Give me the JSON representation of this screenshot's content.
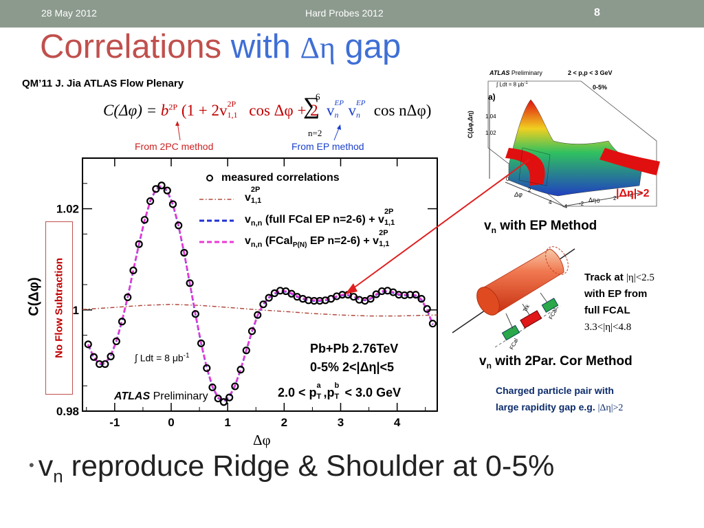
{
  "header": {
    "date": "28 May 2012",
    "conference": "Hard Probes 2012",
    "slide_number": "8"
  },
  "title": {
    "part1": "Correlations",
    "part2": "with",
    "symbol": "Δη",
    "part3": "gap"
  },
  "reference": "QM’11 J. Jia  ATLAS Flow Plenary",
  "formula": {
    "lhs": "C(Δφ) =",
    "b2p": "b",
    "b2p_sup": "2P",
    "open": "(1 + 2v",
    "v11_sup": "2P",
    "v11_sub": "1,1",
    "cos1": "cos Δφ + 2",
    "sum_top": "6",
    "sum_bottom": "n=2",
    "vn1": "v",
    "vn1_sup": "EP",
    "vn1_sub": "n",
    "vn2": "v",
    "vn2_sup": "EP",
    "vn2_sub": "n",
    "cosn": "cos nΔφ)",
    "note_2pc": "From 2PC method",
    "note_ep": "From EP method"
  },
  "side_label": "No Flow Subtraction",
  "colors": {
    "header_bg": "#8c9a8e",
    "title_red": "#c0504d",
    "title_blue": "#3f6fd6",
    "note_red": "#cc2222",
    "note_blue": "#1a3fcc",
    "arrow_red": "#e02020"
  },
  "chart_data": {
    "type": "line",
    "xlabel": "Δφ",
    "ylabel": "C(Δφ)",
    "xlim": [
      -1.57,
      4.71
    ],
    "ylim": [
      0.98,
      1.03
    ],
    "xticks": [
      "-1",
      "0",
      "1",
      "2",
      "3",
      "4"
    ],
    "yticks": [
      "0.98",
      "1",
      "1.02"
    ],
    "grid": false,
    "legend_position": "top",
    "series": [
      {
        "name": "measured correlations",
        "style": "open-circles",
        "color": "#000000",
        "x": [
          -1.47,
          -1.37,
          -1.27,
          -1.17,
          -1.07,
          -0.97,
          -0.87,
          -0.77,
          -0.67,
          -0.57,
          -0.47,
          -0.37,
          -0.27,
          -0.17,
          -0.07,
          0.03,
          0.13,
          0.23,
          0.33,
          0.43,
          0.53,
          0.63,
          0.73,
          0.83,
          0.93,
          1.03,
          1.13,
          1.23,
          1.33,
          1.43,
          1.53,
          1.63,
          1.73,
          1.83,
          1.93,
          2.03,
          2.13,
          2.23,
          2.33,
          2.43,
          2.53,
          2.63,
          2.73,
          2.83,
          2.93,
          3.03,
          3.13,
          3.23,
          3.33,
          3.43,
          3.53,
          3.63,
          3.73,
          3.83,
          3.93,
          4.03,
          4.13,
          4.23,
          4.33,
          4.43,
          4.53,
          4.63
        ],
        "y": [
          0.9932,
          0.9907,
          0.9893,
          0.9893,
          0.9908,
          0.9938,
          0.9977,
          1.0025,
          1.0078,
          1.013,
          1.0178,
          1.0215,
          1.0239,
          1.0246,
          1.0236,
          1.0209,
          1.0167,
          1.0113,
          1.0053,
          0.9992,
          0.9934,
          0.9885,
          0.9847,
          0.9825,
          0.9818,
          0.9827,
          0.9849,
          0.9882,
          0.992,
          0.9958,
          0.999,
          1.0011,
          1.0024,
          1.0033,
          1.0038,
          1.0037,
          1.0032,
          1.0026,
          1.0022,
          1.0019,
          1.0018,
          1.0018,
          1.0019,
          1.0022,
          1.0027,
          1.003,
          1.003,
          1.0026,
          1.002,
          1.0018,
          1.0022,
          1.0031,
          1.0037,
          1.0038,
          1.0035,
          1.003,
          1.0029,
          1.003,
          1.003,
          1.0022,
          1.0002,
          0.9973
        ]
      },
      {
        "name": "v<sub>1,1</sub><sup>2P</sup>",
        "style": "dash-dot",
        "color": "#b0483c",
        "x": [
          -1.57,
          -1.0,
          -0.5,
          0.0,
          0.5,
          1.0,
          1.57,
          2.0,
          2.5,
          3.0,
          3.5,
          4.0,
          4.71
        ],
        "y": [
          1.0001,
          1.0005,
          1.0009,
          1.0011,
          1.0009,
          1.0005,
          1.0,
          0.9997,
          0.9993,
          0.999,
          0.9988,
          0.9988,
          0.999
        ]
      },
      {
        "name": "full FCal EP",
        "style": "dashed",
        "color": "#1f2fd6",
        "x": [
          -1.47,
          -1.37,
          -1.27,
          -1.17,
          -1.07,
          -0.97,
          -0.87,
          -0.77,
          -0.67,
          -0.57,
          -0.47,
          -0.37,
          -0.27,
          -0.17,
          -0.07,
          0.03,
          0.13,
          0.23,
          0.33,
          0.43,
          0.53,
          0.63,
          0.73,
          0.83,
          0.93,
          1.03,
          1.13,
          1.23,
          1.33,
          1.43,
          1.53,
          1.63,
          1.73,
          1.83,
          1.93,
          2.03,
          2.13,
          2.23,
          2.33,
          2.43,
          2.53,
          2.63,
          2.73,
          2.83,
          2.93,
          3.03,
          3.13,
          3.23,
          3.33,
          3.43,
          3.53,
          3.63,
          3.73,
          3.83,
          3.93,
          4.03,
          4.13,
          4.23,
          4.33,
          4.43,
          4.53,
          4.63
        ],
        "y": [
          0.9931,
          0.9906,
          0.9893,
          0.9894,
          0.9909,
          0.9938,
          0.9978,
          1.0025,
          1.0078,
          1.013,
          1.0177,
          1.0215,
          1.0238,
          1.0245,
          1.0235,
          1.0208,
          1.0166,
          1.0112,
          1.0052,
          0.9991,
          0.9934,
          0.9885,
          0.9848,
          0.9826,
          0.9819,
          0.9828,
          0.985,
          0.9882,
          0.992,
          0.9957,
          0.9989,
          1.0011,
          1.0024,
          1.0032,
          1.0037,
          1.0036,
          1.0032,
          1.0026,
          1.0022,
          1.0019,
          1.0018,
          1.0018,
          1.0019,
          1.0022,
          1.0026,
          1.0029,
          1.0029,
          1.0026,
          1.0021,
          1.0019,
          1.0022,
          1.003,
          1.0036,
          1.0037,
          1.0034,
          1.003,
          1.0029,
          1.0029,
          1.0028,
          1.002,
          1.0,
          0.9971
        ]
      },
      {
        "name": "FCal P(N) EP",
        "style": "dashed",
        "color": "#e83ad6",
        "x": [
          -1.47,
          -1.37,
          -1.27,
          -1.17,
          -1.07,
          -0.97,
          -0.87,
          -0.77,
          -0.67,
          -0.57,
          -0.47,
          -0.37,
          -0.27,
          -0.17,
          -0.07,
          0.03,
          0.13,
          0.23,
          0.33,
          0.43,
          0.53,
          0.63,
          0.73,
          0.83,
          0.93,
          1.03,
          1.13,
          1.23,
          1.33,
          1.43,
          1.53,
          1.63,
          1.73,
          1.83,
          1.93,
          2.03,
          2.13,
          2.23,
          2.33,
          2.43,
          2.53,
          2.63,
          2.73,
          2.83,
          2.93,
          3.03,
          3.13,
          3.23,
          3.33,
          3.43,
          3.53,
          3.63,
          3.73,
          3.83,
          3.93,
          4.03,
          4.13,
          4.23,
          4.33,
          4.43,
          4.53,
          4.63
        ],
        "y": [
          0.9932,
          0.9907,
          0.9894,
          0.9895,
          0.991,
          0.9939,
          0.9979,
          1.0026,
          1.0079,
          1.0131,
          1.0178,
          1.0216,
          1.0239,
          1.0246,
          1.0236,
          1.0209,
          1.0167,
          1.0113,
          1.0053,
          0.9992,
          0.9935,
          0.9886,
          0.9849,
          0.9827,
          0.982,
          0.9829,
          0.9851,
          0.9883,
          0.9921,
          0.9958,
          0.999,
          1.0012,
          1.0025,
          1.0033,
          1.0038,
          1.0037,
          1.0033,
          1.0027,
          1.0023,
          1.002,
          1.0019,
          1.0019,
          1.002,
          1.0023,
          1.0027,
          1.003,
          1.003,
          1.0027,
          1.0022,
          1.002,
          1.0023,
          1.0031,
          1.0037,
          1.0038,
          1.0035,
          1.0031,
          1.003,
          1.003,
          1.0029,
          1.0021,
          1.0001,
          0.9972
        ]
      }
    ],
    "legend": {
      "measured": "measured correlations",
      "l1_main": "v",
      "l1_sup": "2P",
      "l1_sub": "1,1",
      "l2_main": "v",
      "l2_sub": "n,n",
      "l2_text": " (full FCal EP n=2-6) + v",
      "l2_sup": "2P",
      "l2_sub2": "1,1",
      "l3_main": "v",
      "l3_sub": "n,n",
      "l3_text": " (FCal",
      "l3_sub_pn": "P(N)",
      "l3_text2": " EP n=2-6) + v",
      "l3_sup": "2P",
      "l3_sub2": "1,1"
    },
    "annotations": {
      "lumi": "∫ Ldt = 8 μb",
      "lumi_sup": "-1",
      "atlas": "ATLAS",
      "prelim": "Preliminary",
      "system": "Pb+Pb 2.76TeV",
      "centrality": "0-5% 2<|Δη|<5",
      "pt_cut": "2.0 < p",
      "pt_a": "a",
      "pt_T": "T",
      "pt_mid": ",p",
      "pt_b": "b",
      "pt_T2": "T",
      "pt_end": " < 3.0 GeV"
    }
  },
  "plot3d": {
    "atlas": "ATLAS",
    "prelim": "Preliminary",
    "lumi": "∫ Ldt = 8 μb",
    "lumi_sup": "-1",
    "pt": "2 < p",
    "pt_rest": ",p",
    "pt_end": " < 3 GeV",
    "cent": "0-5%",
    "panel": "a)",
    "zlabel": "C(Δφ,Δη)",
    "zticks": [
      "1.04",
      "1.02"
    ],
    "deta_label": "|Δη|>2",
    "xaxis": "Δφ",
    "yaxis": "Δη",
    "ticks_phi": [
      "0",
      "2",
      "4"
    ],
    "ticks_eta": [
      "-4",
      "-2",
      "0",
      "2",
      "4"
    ]
  },
  "ep_method": {
    "v": "v",
    "sub": "n",
    "text": " with EP Method"
  },
  "par_method": {
    "v": "v",
    "sub": "n",
    "text": " with 2Par. Cor Method"
  },
  "track": {
    "line1a": "Track at ",
    "line1b": "|η|<2.5",
    "line2": "with EP from",
    "line3": "full FCAL",
    "line4": "3.3<|η|<4.8"
  },
  "detector": {
    "trk": "Trk",
    "fcal1": "FCal",
    "fcal2": "FCal"
  },
  "pair": {
    "line1": "Charged particle pair with",
    "line2a": "large rapidity gap e.g.  ",
    "line2b": "|Δη|>2"
  },
  "bullet": {
    "v": "v",
    "sub": "n",
    "text": " reproduce Ridge & Shoulder at 0-5%"
  }
}
